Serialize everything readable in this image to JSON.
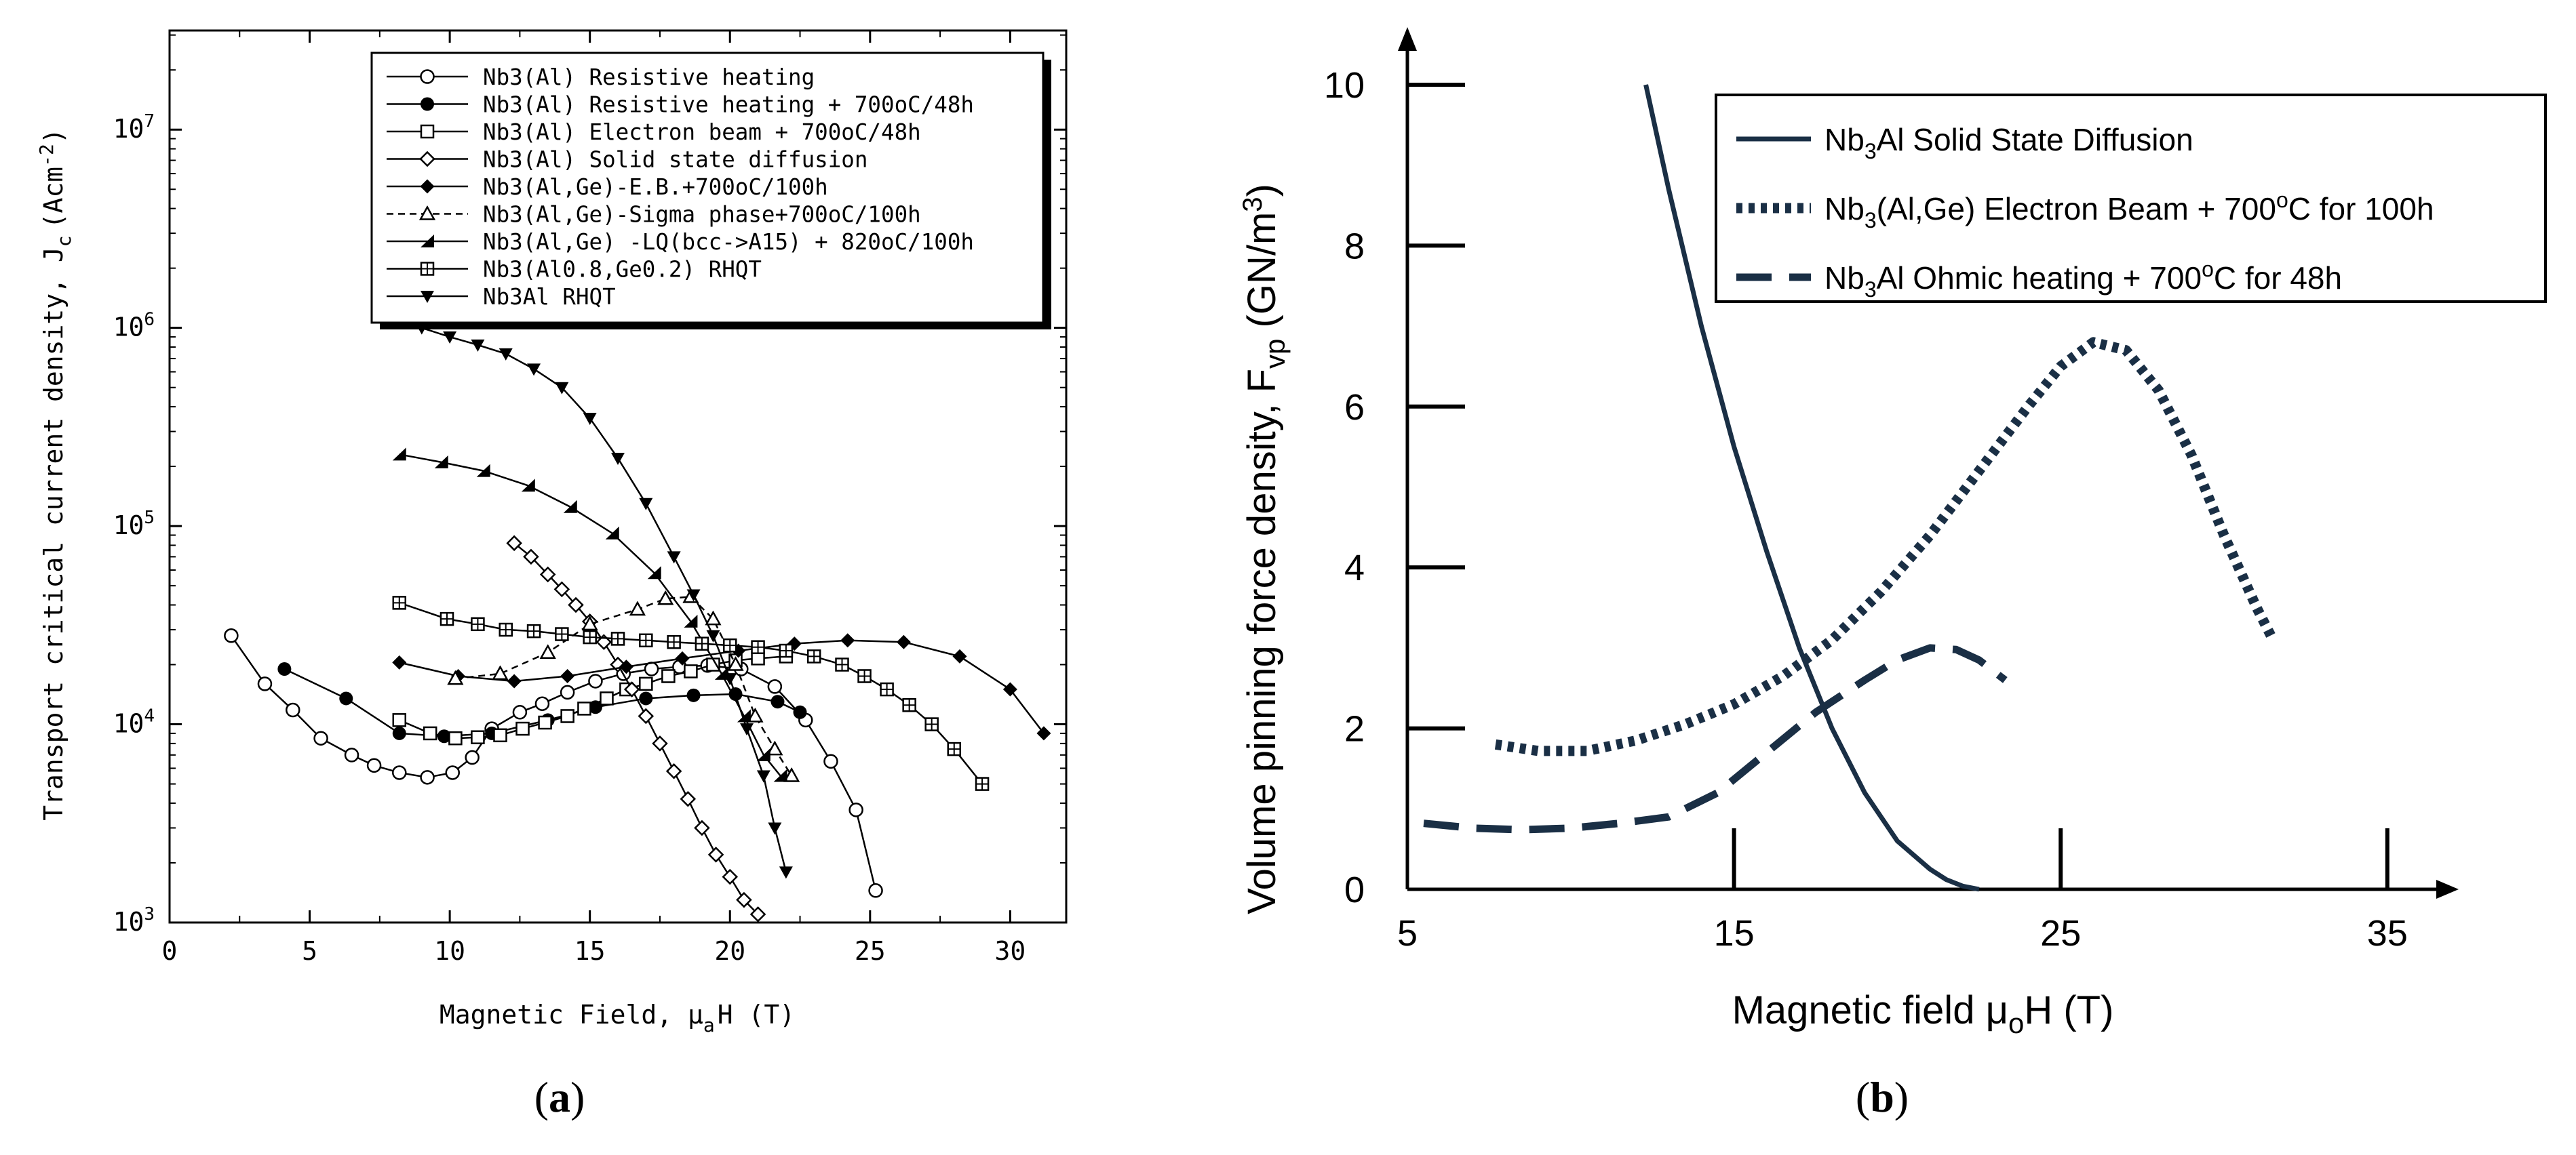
{
  "panels": {
    "a": {
      "caption_open": "(",
      "caption_letter": "a",
      "caption_close": ")"
    },
    "b": {
      "caption_open": "(",
      "caption_letter": "b",
      "caption_close": ")"
    }
  },
  "chart_data": [
    {
      "type": "line",
      "panel": "a",
      "xlabel_main": "Magnetic Field, μ",
      "xlabel_sub": "a",
      "xlabel_tail": "H (T)",
      "ylabel_main": "Transport critical current density, J",
      "ylabel_sub": "c",
      "ylabel_unit": "(Acm",
      "ylabel_unit_sup": "-2",
      "ylabel_close": ")",
      "xlim": [
        0,
        32
      ],
      "ylim_log10": [
        3,
        7.5
      ],
      "xticks": [
        "0",
        "5",
        "10",
        "15",
        "20",
        "25",
        "30"
      ],
      "yticks": [
        {
          "base": "10",
          "exp": "3",
          "value": 1000
        },
        {
          "base": "10",
          "exp": "4",
          "value": 10000
        },
        {
          "base": "10",
          "exp": "5",
          "value": 100000
        },
        {
          "base": "10",
          "exp": "6",
          "value": 1000000
        },
        {
          "base": "10",
          "exp": "7",
          "value": 10000000
        }
      ],
      "series": [
        {
          "name": "Nb3(Al)  Resistive heating",
          "marker": "circle-open",
          "line": "solid",
          "x": [
            2.2,
            3.4,
            4.4,
            5.4,
            6.5,
            7.3,
            8.2,
            9.2,
            10.1,
            10.8,
            11.5,
            12.5,
            13.3,
            14.2,
            15.2,
            16.2,
            17.2,
            18.2,
            19.2,
            20.4,
            21.6,
            22.7,
            23.6,
            24.5,
            25.2
          ],
          "y": [
            28000,
            16000,
            11800,
            8500,
            7000,
            6200,
            5700,
            5400,
            5700,
            6800,
            9500,
            11500,
            12700,
            14500,
            16500,
            18000,
            19000,
            19500,
            19800,
            19000,
            15500,
            10500,
            6500,
            3700,
            1450
          ]
        },
        {
          "name": "Nb3(Al)  Resistive heating + 700oC/48h",
          "marker": "circle-filled",
          "line": "solid",
          "x": [
            4.1,
            6.3,
            8.2,
            9.8,
            11.5,
            13.5,
            15.2,
            17.0,
            18.7,
            20.2,
            21.7,
            22.5
          ],
          "y": [
            19000,
            13500,
            9000,
            8700,
            9000,
            10500,
            12200,
            13500,
            14000,
            14200,
            13000,
            11500
          ]
        },
        {
          "name": "Nb3(Al)  Electron beam + 700oC/48h",
          "marker": "square-open",
          "line": "solid",
          "x": [
            8.2,
            9.3,
            10.2,
            11.0,
            11.8,
            12.6,
            13.4,
            14.2,
            14.8,
            15.6,
            16.3,
            17.0,
            17.8,
            18.6,
            19.4,
            20.2,
            21.0,
            22.0
          ],
          "y": [
            10500,
            9000,
            8500,
            8600,
            8800,
            9500,
            10200,
            11000,
            12000,
            13500,
            15000,
            16000,
            17500,
            18500,
            20000,
            21000,
            21500,
            22000
          ]
        },
        {
          "name": "Nb3(Al) Solid state diffusion",
          "marker": "diamond-open",
          "line": "solid",
          "x": [
            12.3,
            12.9,
            13.5,
            14.0,
            14.5,
            15.0,
            15.5,
            16.0,
            16.5,
            17.0,
            17.5,
            18.0,
            18.5,
            19.0,
            19.5,
            20.0,
            20.5,
            21.0
          ],
          "y": [
            82000,
            70000,
            57000,
            48000,
            40000,
            33000,
            26000,
            20000,
            15000,
            11000,
            8000,
            5800,
            4200,
            3000,
            2200,
            1700,
            1300,
            1100
          ]
        },
        {
          "name": "Nb3(Al,Ge)-E.B.+700oC/100h",
          "marker": "diamond-filled",
          "line": "solid",
          "x": [
            8.2,
            10.3,
            12.3,
            14.2,
            16.3,
            18.3,
            20.3,
            22.3,
            24.2,
            26.2,
            28.2,
            30.0,
            31.2
          ],
          "y": [
            20500,
            17500,
            16500,
            17500,
            19500,
            21500,
            23500,
            25500,
            26500,
            26000,
            22000,
            15000,
            9000
          ]
        },
        {
          "name": "Nb3(Al,Ge)-Sigma phase+700oC/100h",
          "marker": "triangle-open",
          "line": "dash",
          "x": [
            10.2,
            11.8,
            13.5,
            15.0,
            16.7,
            17.7,
            18.6,
            19.4,
            20.2,
            20.9,
            21.6,
            22.2
          ],
          "y": [
            17000,
            18000,
            23000,
            32000,
            38000,
            43000,
            44000,
            34000,
            20000,
            11000,
            7500,
            5500
          ]
        },
        {
          "name": "Nb3(Al,Ge) -LQ(bcc->A15) + 820oC/100h",
          "marker": "triangle-up-filled",
          "line": "solid",
          "x": [
            8.2,
            9.7,
            11.2,
            12.8,
            14.3,
            15.8,
            17.3,
            18.6,
            19.7,
            20.5,
            21.2,
            21.8
          ],
          "y": [
            230000,
            210000,
            190000,
            160000,
            125000,
            92000,
            58000,
            33000,
            18000,
            11000,
            7000,
            5500
          ]
        },
        {
          "name": "Nb3(Al0.8,Ge0.2) RHQT",
          "marker": "square-cross",
          "line": "solid",
          "x": [
            8.2,
            9.9,
            11.0,
            12.0,
            13.0,
            14.0,
            15.0,
            16.0,
            17.0,
            18.0,
            19.0,
            20.0,
            21.0,
            22.0,
            23.0,
            24.0,
            24.8,
            25.6,
            26.4,
            27.2,
            28.0,
            29.0
          ],
          "y": [
            41000,
            34000,
            32000,
            30000,
            29500,
            28500,
            27500,
            27000,
            26500,
            26000,
            25500,
            25000,
            24500,
            23500,
            22000,
            20000,
            17500,
            15000,
            12500,
            10000,
            7500,
            5000
          ]
        },
        {
          "name": "Nb3Al RHQT",
          "marker": "triangle-down-filled",
          "line": "solid",
          "x": [
            8.2,
            9.0,
            10.0,
            11.0,
            12.0,
            13.0,
            14.0,
            15.0,
            16.0,
            17.0,
            18.0,
            18.7,
            19.4,
            20.0,
            20.6,
            21.2,
            21.6,
            22.0
          ],
          "y": [
            1150000,
            1000000,
            900000,
            820000,
            740000,
            620000,
            500000,
            350000,
            220000,
            130000,
            70000,
            45000,
            28000,
            17000,
            9500,
            5500,
            3000,
            1800
          ]
        }
      ]
    },
    {
      "type": "line",
      "panel": "b",
      "xlabel": "Magnetic field μ",
      "xlabel_sub": "o",
      "xlabel_tail": "H (T)",
      "ylabel": "Volume pinning force density, F",
      "ylabel_sub": "vp",
      "ylabel_unit": " (GN/m",
      "ylabel_unit_sup": "3",
      "ylabel_close": ")",
      "xlim": [
        5,
        36
      ],
      "ylim": [
        0,
        10.8
      ],
      "xticks": [
        "5",
        "15",
        "25",
        "35"
      ],
      "yticks": [
        "0",
        "2",
        "4",
        "6",
        "8",
        "10"
      ],
      "series": [
        {
          "name_pre": "Nb",
          "name_sub": "3",
          "name_post": "Al Solid State Diffusion",
          "line": "solid",
          "x": [
            12.3,
            13.0,
            14.0,
            15.0,
            16.0,
            17.0,
            18.0,
            19.0,
            20.0,
            21.0,
            21.5,
            22.0,
            22.5
          ],
          "y": [
            10.0,
            8.7,
            7.0,
            5.5,
            4.2,
            3.0,
            2.0,
            1.2,
            0.6,
            0.25,
            0.12,
            0.04,
            0.0
          ]
        },
        {
          "name_pre": "Nb",
          "name_sub": "3",
          "name_post": "(Al,Ge) Electron Beam + 700",
          "name_sup": "o",
          "name_tail": "C for 100h",
          "line": "dotted",
          "x": [
            7.7,
            9.0,
            10.5,
            12.0,
            13.5,
            15.0,
            16.5,
            18.0,
            19.5,
            21.0,
            22.5,
            24.0,
            25.0,
            26.0,
            27.0,
            28.0,
            29.0,
            30.0,
            31.0,
            31.5
          ],
          "y": [
            1.8,
            1.72,
            1.72,
            1.85,
            2.05,
            2.3,
            2.65,
            3.1,
            3.7,
            4.4,
            5.2,
            6.0,
            6.5,
            6.8,
            6.7,
            6.2,
            5.4,
            4.4,
            3.5,
            3.1
          ]
        },
        {
          "name_pre": "Nb",
          "name_sub": "3",
          "name_post": "Al Ohmic heating + 700",
          "name_sup": "o",
          "name_tail": "C for 48h",
          "line": "dashed",
          "x": [
            5.5,
            7.0,
            8.5,
            10.0,
            11.5,
            13.0,
            14.5,
            16.0,
            17.5,
            19.0,
            20.0,
            21.0,
            21.8,
            22.5,
            23.3
          ],
          "y": [
            0.82,
            0.76,
            0.74,
            0.76,
            0.82,
            0.9,
            1.2,
            1.7,
            2.2,
            2.6,
            2.85,
            3.0,
            2.98,
            2.85,
            2.6
          ]
        }
      ]
    }
  ]
}
